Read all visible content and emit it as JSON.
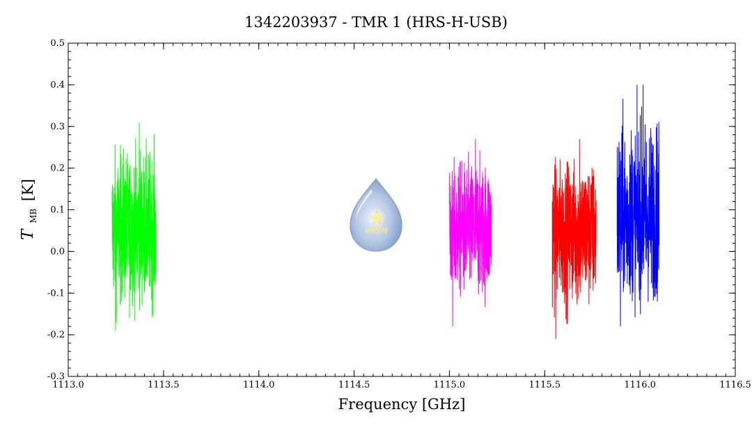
{
  "chart_data": {
    "type": "line",
    "title": "1342203937 - TMR 1 (HRS-H-USB)",
    "xlabel": "Frequency [GHz]",
    "ylabel_main": "T",
    "ylabel_sub": "MB",
    "ylabel_unit": "[K]",
    "xlim": [
      1113.0,
      1116.5
    ],
    "ylim": [
      -0.3,
      0.5
    ],
    "xticks": [
      "1113.0",
      "1113.5",
      "1114.0",
      "1114.5",
      "1115.0",
      "1115.5",
      "1116.0",
      "1116.5"
    ],
    "yticks": [
      "-0.3",
      "-0.2",
      "-0.1",
      "0.0",
      "0.1",
      "0.2",
      "0.3",
      "0.4",
      "0.5"
    ],
    "grid": false,
    "series": [
      {
        "color": "#00ff00",
        "x_range": [
          1113.23,
          1113.46
        ],
        "mean": 0.05,
        "min": -0.19,
        "max": 0.31
      },
      {
        "color": "#ff00ff",
        "x_range": [
          1115.0,
          1115.22
        ],
        "mean": 0.06,
        "min": -0.18,
        "max": 0.27
      },
      {
        "color": "#ff0000",
        "x_range": [
          1115.54,
          1115.77
        ],
        "mean": 0.06,
        "min": -0.21,
        "max": 0.27
      },
      {
        "color": "#0000ff",
        "x_range": [
          1115.88,
          1116.1
        ],
        "mean": 0.07,
        "min": -0.18,
        "max": 0.4
      }
    ]
  },
  "logo": {
    "text": "WISH"
  }
}
